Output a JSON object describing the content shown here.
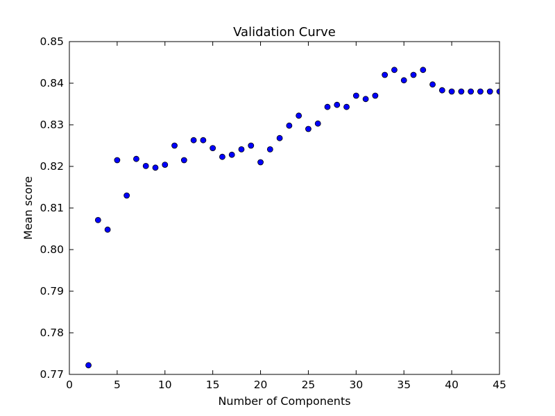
{
  "chart_data": {
    "type": "scatter",
    "title": "Validation Curve",
    "xlabel": "Number of Components",
    "ylabel": "Mean score",
    "xlim": [
      0,
      45
    ],
    "ylim": [
      0.77,
      0.85
    ],
    "xticks": [
      0,
      5,
      10,
      15,
      20,
      25,
      30,
      35,
      40,
      45
    ],
    "yticks": [
      0.77,
      0.78,
      0.79,
      0.8,
      0.81,
      0.82,
      0.83,
      0.84,
      0.85
    ],
    "xtick_labels": [
      "0",
      "5",
      "10",
      "15",
      "20",
      "25",
      "30",
      "35",
      "40",
      "45"
    ],
    "ytick_labels": [
      "0.77",
      "0.78",
      "0.79",
      "0.80",
      "0.81",
      "0.82",
      "0.83",
      "0.84",
      "0.85"
    ],
    "grid": false,
    "marker_color": "#0000ff",
    "x": [
      2,
      3,
      4,
      5,
      6,
      7,
      8,
      9,
      10,
      11,
      12,
      13,
      14,
      15,
      16,
      17,
      18,
      19,
      20,
      21,
      22,
      23,
      24,
      25,
      26,
      27,
      28,
      29,
      30,
      31,
      32,
      33,
      34,
      35,
      36,
      37,
      38,
      39,
      40,
      41,
      42,
      43,
      44,
      45
    ],
    "y": [
      0.7722,
      0.8071,
      0.8048,
      0.8215,
      0.813,
      0.8218,
      0.8201,
      0.8197,
      0.8204,
      0.825,
      0.8215,
      0.8263,
      0.8263,
      0.8244,
      0.8223,
      0.8228,
      0.8241,
      0.825,
      0.821,
      0.8241,
      0.8268,
      0.8298,
      0.8322,
      0.829,
      0.8303,
      0.8343,
      0.8348,
      0.8343,
      0.837,
      0.8362,
      0.837,
      0.842,
      0.8432,
      0.8407,
      0.842,
      0.8432,
      0.8397,
      0.8383,
      0.838,
      0.838,
      0.838,
      0.838,
      0.838,
      0.838
    ]
  }
}
